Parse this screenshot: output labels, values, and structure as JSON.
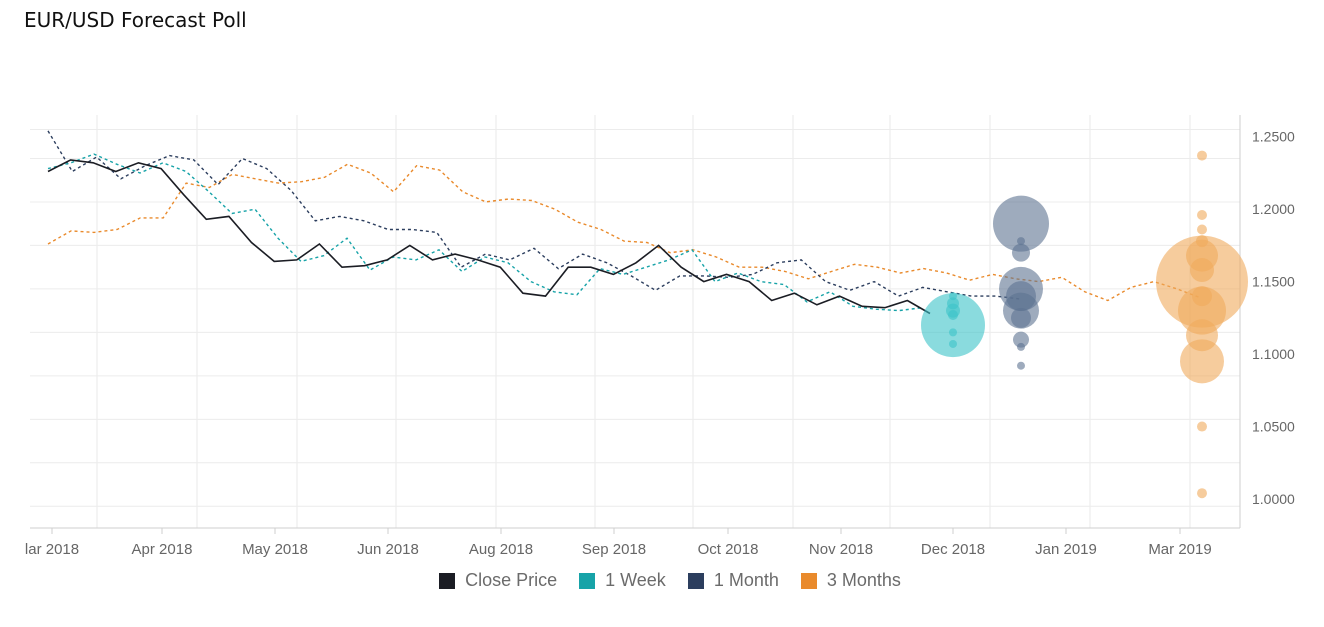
{
  "chart_data": {
    "type": "line",
    "title": "EUR/USD Forecast Poll",
    "xlabel": "",
    "ylabel": "",
    "ylim": [
      0.98,
      1.265
    ],
    "y_ticks": [
      "1.0000",
      "1.0500",
      "1.1000",
      "1.1500",
      "1.2000",
      "1.2500"
    ],
    "x_ticks": [
      "lar 2018",
      "Apr 2018",
      "May 2018",
      "Jun 2018",
      "Aug 2018",
      "Sep 2018",
      "Oct 2018",
      "Nov 2018",
      "Dec 2018",
      "Jan 2019",
      "Mar 2019"
    ],
    "grid": true,
    "legend_position": "bottom-center",
    "series": [
      {
        "name": "Close Price",
        "color": "#1b1d24",
        "style": "solid",
        "values": [
          1.226,
          1.234,
          1.232,
          1.226,
          1.232,
          1.228,
          1.21,
          1.193,
          1.195,
          1.177,
          1.164,
          1.165,
          1.176,
          1.16,
          1.161,
          1.165,
          1.175,
          1.165,
          1.169,
          1.165,
          1.16,
          1.142,
          1.14,
          1.16,
          1.16,
          1.155,
          1.163,
          1.175,
          1.16,
          1.15,
          1.155,
          1.15,
          1.137,
          1.142,
          1.134,
          1.14,
          1.133,
          1.132,
          1.137,
          1.128
        ]
      },
      {
        "name": "1 Week",
        "color": "#17a3a8",
        "style": "dashed",
        "values": [
          1.228,
          1.232,
          1.238,
          1.231,
          1.225,
          1.232,
          1.226,
          1.212,
          1.197,
          1.2,
          1.18,
          1.164,
          1.168,
          1.18,
          1.158,
          1.167,
          1.165,
          1.172,
          1.157,
          1.167,
          1.163,
          1.15,
          1.143,
          1.141,
          1.159,
          1.155,
          1.16,
          1.165,
          1.172,
          1.15,
          1.156,
          1.15,
          1.148,
          1.136,
          1.143,
          1.133,
          1.131,
          1.13,
          1.132
        ]
      },
      {
        "name": "1 Month",
        "color": "#2c3e5e",
        "style": "dashed",
        "values": [
          1.254,
          1.226,
          1.236,
          1.221,
          1.23,
          1.237,
          1.234,
          1.217,
          1.235,
          1.228,
          1.213,
          1.192,
          1.195,
          1.192,
          1.186,
          1.186,
          1.184,
          1.16,
          1.169,
          1.165,
          1.173,
          1.159,
          1.169,
          1.163,
          1.154,
          1.144,
          1.154,
          1.154,
          1.153,
          1.155,
          1.163,
          1.165,
          1.15,
          1.144,
          1.15,
          1.14,
          1.146,
          1.143,
          1.14,
          1.14,
          1.138
        ]
      },
      {
        "name": "3 Months",
        "color": "#e98a2c",
        "style": "dashed",
        "values": [
          1.176,
          1.185,
          1.184,
          1.186,
          1.194,
          1.194,
          1.218,
          1.215,
          1.224,
          1.221,
          1.218,
          1.219,
          1.222,
          1.231,
          1.225,
          1.212,
          1.23,
          1.227,
          1.212,
          1.205,
          1.207,
          1.206,
          1.2,
          1.191,
          1.186,
          1.178,
          1.177,
          1.17,
          1.172,
          1.167,
          1.16,
          1.16,
          1.157,
          1.152,
          1.157,
          1.162,
          1.16,
          1.156,
          1.159,
          1.156,
          1.151,
          1.155,
          1.152,
          1.15,
          1.153,
          1.143,
          1.137,
          1.146,
          1.15,
          1.145,
          1.139
        ]
      }
    ],
    "bubbles": [
      {
        "series": "1 Week",
        "color": "#3cc3c8",
        "points": [
          {
            "y": 1.12,
            "r": 32
          },
          {
            "y": 1.14,
            "r": 4
          },
          {
            "y": 1.135,
            "r": 6
          },
          {
            "y": 1.13,
            "r": 7
          },
          {
            "y": 1.127,
            "r": 5
          },
          {
            "y": 1.115,
            "r": 4
          },
          {
            "y": 1.107,
            "r": 4
          }
        ]
      },
      {
        "series": "1 Month",
        "color": "#5e7391",
        "points": [
          {
            "y": 1.19,
            "r": 28
          },
          {
            "y": 1.145,
            "r": 22
          },
          {
            "y": 1.13,
            "r": 18
          },
          {
            "y": 1.14,
            "r": 15
          },
          {
            "y": 1.125,
            "r": 10
          },
          {
            "y": 1.17,
            "r": 9
          },
          {
            "y": 1.11,
            "r": 8
          },
          {
            "y": 1.178,
            "r": 4
          },
          {
            "y": 1.105,
            "r": 4
          },
          {
            "y": 1.092,
            "r": 4
          }
        ]
      },
      {
        "series": "3 Months",
        "color": "#f0aa5c",
        "points": [
          {
            "y": 1.15,
            "r": 46
          },
          {
            "y": 1.13,
            "r": 24
          },
          {
            "y": 1.095,
            "r": 22
          },
          {
            "y": 1.113,
            "r": 16
          },
          {
            "y": 1.168,
            "r": 16
          },
          {
            "y": 1.158,
            "r": 12
          },
          {
            "y": 1.14,
            "r": 10
          },
          {
            "y": 1.178,
            "r": 6
          },
          {
            "y": 1.186,
            "r": 5
          },
          {
            "y": 1.196,
            "r": 5
          },
          {
            "y": 1.237,
            "r": 5
          },
          {
            "y": 1.05,
            "r": 5
          },
          {
            "y": 1.004,
            "r": 5
          }
        ]
      }
    ]
  }
}
